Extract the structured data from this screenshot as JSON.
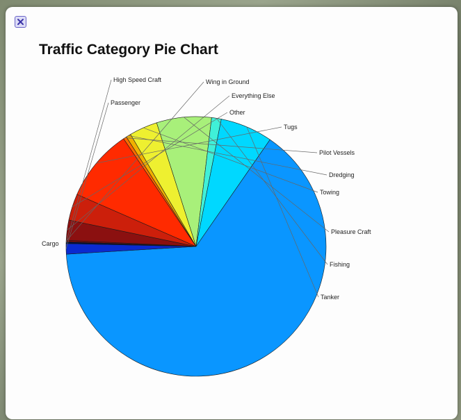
{
  "popup": {
    "close_icon": "close-icon"
  },
  "chart_data": {
    "type": "pie",
    "title": "Traffic Category Pie Chart",
    "start_angle_deg": 272,
    "direction": "clockwise",
    "slices": [
      {
        "label": "Wing in Ground",
        "value": 0.2,
        "color": "#7a0d0d"
      },
      {
        "label": "Everything Else",
        "value": 2.5,
        "color": "#8b1010"
      },
      {
        "label": "Other",
        "value": 3.3,
        "color": "#cc1f0b"
      },
      {
        "label": "Tugs",
        "value": 9.0,
        "color": "#ff2a00"
      },
      {
        "label": "Pilot Vessels",
        "value": 0.4,
        "color": "#ff6a00"
      },
      {
        "label": "Dredging",
        "value": 0.6,
        "color": "#f0b000"
      },
      {
        "label": "Towing",
        "value": 3.5,
        "color": "#eef030"
      },
      {
        "label": "Pleasure Craft",
        "value": 6.8,
        "color": "#a8f07a"
      },
      {
        "label": "Fishing",
        "value": 1.2,
        "color": "#40f0d8"
      },
      {
        "label": "Tanker",
        "value": 6.5,
        "color": "#00d8ff"
      },
      {
        "label": "Cargo",
        "value": 64.3,
        "color": "#0a96ff"
      },
      {
        "label": "Passenger",
        "value": 1.3,
        "color": "#0a2ad0"
      },
      {
        "label": "High Speed Craft",
        "value": 0.2,
        "color": "#00103a"
      }
    ]
  }
}
